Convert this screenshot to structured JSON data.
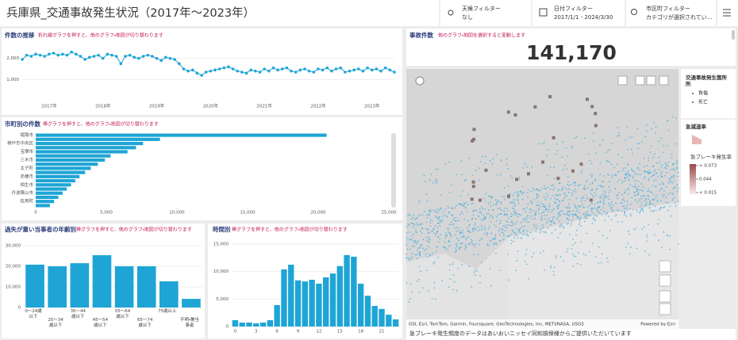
{
  "header": {
    "title": "兵庫県_交通事故発生状況（2017年～2023年）"
  },
  "filters": [
    {
      "label": "天候フィルター",
      "value": "なし"
    },
    {
      "label": "日付フィルター",
      "value": "2017/1/1 - 2024/3/30"
    },
    {
      "label": "市区町フィルター",
      "value": "カテゴリが選択されてい…"
    }
  ],
  "kpi": {
    "title": "事故件数",
    "subtitle": "他のグラフ・地図を選択すると変動します",
    "value": 141170,
    "value_label": "141,170"
  },
  "map": {
    "attribution": "GSI, Esri, TomTom, Garmin, Foursquare, GeoTechnologies, Inc, METI/NASA, USGS",
    "powered": "Powered by Esri"
  },
  "legend": {
    "title": "交通事故発生箇所",
    "items": [
      "負傷",
      "死亡"
    ],
    "section2": "急減速率",
    "section3": "急ブレーキ発生率",
    "scale": [
      {
        "value": 0.073,
        "label": "> 0.073"
      },
      {
        "value": 0.044,
        "label": "0.044"
      },
      {
        "value": 0.015,
        "label": "< 0.015"
      }
    ]
  },
  "footer": "急ブレーキ発生頻度のデータはあいおいニッセイ同和損保様からご提供いただいています",
  "chart_data": [
    {
      "type": "line",
      "title": "件数の推移",
      "subtitle": "折れ線グラフを押すと、他のグラフ・地図が切り替わります",
      "color": "#1ea5d6",
      "categories": [
        null,
        null,
        null,
        null,
        null,
        null,
        "2017年",
        null,
        null,
        null,
        null,
        null,
        null,
        null,
        null,
        null,
        null,
        null,
        "2018年",
        null,
        null,
        null,
        null,
        null,
        null,
        null,
        null,
        null,
        null,
        null,
        "2019年",
        null,
        null,
        null,
        null,
        null,
        null,
        null,
        null,
        null,
        null,
        null,
        "2020年",
        null,
        null,
        null,
        null,
        null,
        null,
        null,
        null,
        null,
        null,
        null,
        "2021年",
        null,
        null,
        null,
        null,
        null,
        null,
        null,
        null,
        null,
        null,
        null,
        "2022年",
        null,
        null,
        null,
        null,
        null,
        null,
        null,
        null,
        null,
        null,
        null,
        "2023年",
        null,
        null,
        null,
        null,
        null
      ],
      "values": [
        1950,
        2150,
        2100,
        2200,
        2150,
        2100,
        2200,
        2250,
        2150,
        2200,
        2150,
        2300,
        2200,
        2100,
        1950,
        2050,
        2100,
        2150,
        2000,
        2200,
        2150,
        2100,
        1750,
        2100,
        2150,
        2050,
        2000,
        2100,
        2150,
        2100,
        2000,
        1900,
        2050,
        2000,
        1950,
        1750,
        1500,
        1400,
        1450,
        1300,
        1200,
        1350,
        1400,
        1450,
        1500,
        1550,
        1600,
        1500,
        1400,
        1350,
        1300,
        1450,
        1400,
        1350,
        1500,
        1400,
        1550,
        1450,
        1500,
        1550,
        1400,
        1350,
        1450,
        1500,
        1400,
        1350,
        1500,
        1450,
        1550,
        1400,
        1500,
        1550,
        1350,
        1400,
        1450,
        1500,
        1400,
        1550,
        1450,
        1500,
        1400,
        1550,
        1450,
        1350
      ],
      "ylim": [
        0,
        2700
      ],
      "yticks": [
        {
          "value": 1000,
          "label": "1,000"
        },
        {
          "value": 2000,
          "label": "2,000"
        }
      ],
      "grid": true
    },
    {
      "type": "barh",
      "title": "市町別の件数",
      "subtitle": "棒グラフを押すと、他のグラフ・地図が切り替わります",
      "color": "#1ea5d6",
      "categories": [
        "姫路市",
        null,
        "神戸市中央区",
        null,
        "宝塚市",
        null,
        "三木市",
        null,
        "太子町",
        null,
        "赤穂市",
        null,
        "相生市",
        null,
        "丹波篠山市",
        null,
        "佐用町",
        null
      ],
      "values": [
        20600,
        8800,
        7600,
        7100,
        6500,
        5300,
        4900,
        4400,
        3900,
        3500,
        3100,
        2800,
        2500,
        2200,
        1900,
        1600,
        1300,
        1000
      ],
      "xlim": [
        0,
        25000
      ],
      "xticks": [
        0,
        {
          "value": 5000,
          "label": "5,000"
        },
        {
          "value": 10000,
          "label": "10,000"
        },
        {
          "value": 15000,
          "label": "15,000"
        },
        {
          "value": 20000,
          "label": "20,000"
        },
        {
          "value": 25000,
          "label": "25,000"
        }
      ],
      "grid": false
    },
    {
      "type": "bar",
      "title": "過失が重い当事者の年齢別",
      "subtitle": "棒グラフを押すと、他のグラフ・地図が切り替わります",
      "color": "#1ea5d6",
      "categories": [
        "0～24歳以下",
        "25～34歳以下",
        "35～44歳以下",
        "45～54歳以下",
        "55～64歳以下",
        "65～74歳以下",
        "75歳以上",
        "不明・兼当事者"
      ],
      "values": [
        20800,
        20000,
        21500,
        25400,
        20000,
        20000,
        12700,
        4200
      ],
      "ylim": [
        0,
        32000
      ],
      "yticks": [
        0,
        {
          "value": 10000,
          "label": "10,000"
        },
        {
          "value": 20000,
          "label": "20,000"
        },
        {
          "value": 30000,
          "label": "30,000"
        }
      ],
      "grid": true
    },
    {
      "type": "bar",
      "title": "時間別",
      "subtitle": "棒グラフを押すと、他のグラフ・地図が切り替わります",
      "color": "#1ea5d6",
      "categories": [
        "0",
        null,
        null,
        "3",
        null,
        null,
        "6",
        null,
        null,
        "9",
        null,
        null,
        "12",
        null,
        null,
        "15",
        null,
        null,
        "18",
        null,
        null,
        "21",
        null,
        null
      ],
      "values": [
        1150,
        720,
        720,
        580,
        720,
        1150,
        3900,
        10400,
        11250,
        8400,
        8200,
        8500,
        7800,
        8950,
        9650,
        11000,
        13000,
        12700,
        7800,
        5600,
        3750,
        3200,
        2150,
        1300
      ],
      "ylim": [
        0,
        16000
      ],
      "yticks": [
        0,
        {
          "value": 5000,
          "label": "5,000"
        },
        {
          "value": 10000,
          "label": "10,000"
        },
        {
          "value": 15000,
          "label": "15,000"
        }
      ],
      "grid": true
    }
  ]
}
